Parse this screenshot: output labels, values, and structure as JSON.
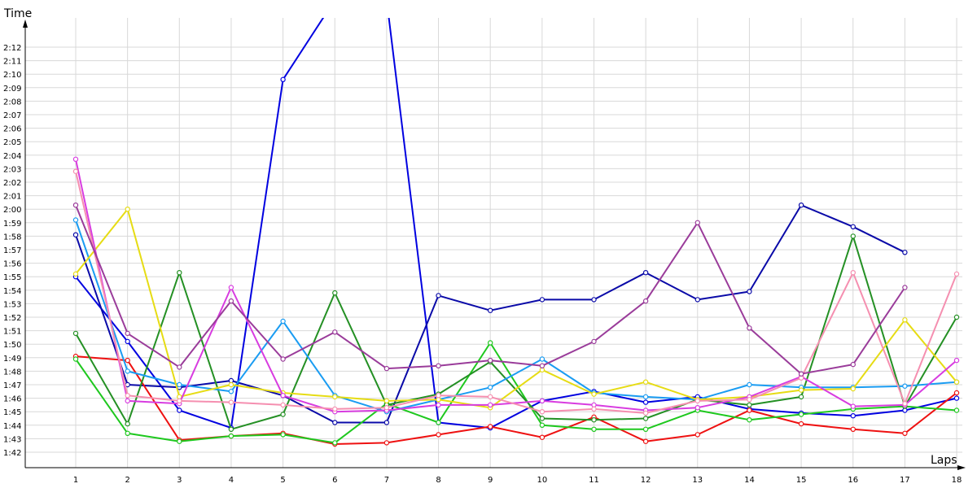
{
  "chart_data": {
    "type": "line",
    "ylabel": "Time",
    "xlabel": "Laps",
    "x": [
      1,
      2,
      3,
      4,
      5,
      6,
      7,
      8,
      9,
      10,
      11,
      12,
      13,
      14,
      15,
      16,
      17,
      18
    ],
    "y_tick_labels": [
      "1:42",
      "1:43",
      "1:44",
      "1:45",
      "1:46",
      "1:47",
      "1:48",
      "1:49",
      "1:50",
      "1:51",
      "1:52",
      "1:53",
      "1:54",
      "1:55",
      "1:56",
      "1:57",
      "1:58",
      "1:59",
      "2:00",
      "2:01",
      "2:02",
      "2:03",
      "2:04",
      "2:05",
      "2:06",
      "2:07",
      "2:08",
      "2:09",
      "2:10",
      "2:11",
      "2:12"
    ],
    "y_unit": "seconds",
    "ylim": [
      100.6,
      134.0
    ],
    "grid": true,
    "series": [
      {
        "color": "#0000e0",
        "values": [
          115.0,
          110.2,
          105.1,
          103.8,
          129.6,
          135.5,
          135.5,
          104.2,
          103.8,
          105.8,
          106.5,
          105.7,
          106.1,
          105.2,
          104.9,
          104.7,
          105.1,
          106.0
        ]
      },
      {
        "color": "#0a0aa8",
        "values": [
          118.1,
          107.0,
          106.8,
          107.3,
          106.2,
          104.2,
          104.2,
          113.6,
          112.5,
          113.3,
          113.3,
          115.3,
          113.3,
          113.9,
          120.3,
          118.7,
          116.8,
          null
        ]
      },
      {
        "color": "#ee1111",
        "values": [
          109.1,
          108.8,
          102.9,
          103.2,
          103.4,
          102.6,
          102.7,
          103.3,
          103.9,
          103.1,
          104.6,
          102.8,
          103.3,
          105.1,
          104.1,
          103.7,
          103.4,
          106.4
        ]
      },
      {
        "color": "#1ec81e",
        "values": [
          108.9,
          103.4,
          102.8,
          103.2,
          103.3,
          102.7,
          105.6,
          104.2,
          110.1,
          104.0,
          103.7,
          103.7,
          105.1,
          104.4,
          104.8,
          105.2,
          105.4,
          105.1
        ]
      },
      {
        "color": "#249024",
        "values": [
          110.8,
          104.1,
          115.3,
          103.7,
          104.8,
          113.8,
          105.5,
          106.3,
          108.7,
          104.5,
          104.4,
          104.5,
          105.9,
          105.5,
          106.1,
          118.0,
          105.4,
          112.0
        ]
      },
      {
        "color": "#1a9cf2",
        "values": [
          119.2,
          108.0,
          107.0,
          106.5,
          111.7,
          106.2,
          105.0,
          105.9,
          106.8,
          108.9,
          106.4,
          106.1,
          105.9,
          107.0,
          106.8,
          106.8,
          106.9,
          107.2
        ]
      },
      {
        "color": "#e6dc14",
        "values": [
          115.2,
          120.0,
          106.1,
          107.0,
          106.4,
          106.1,
          105.8,
          105.9,
          105.3,
          108.1,
          106.3,
          107.2,
          105.9,
          106.1,
          106.6,
          106.7,
          111.8,
          107.2
        ]
      },
      {
        "color": "#d83ce0",
        "values": [
          123.7,
          105.8,
          105.6,
          114.2,
          106.2,
          105.0,
          105.1,
          105.5,
          105.5,
          105.8,
          105.5,
          105.1,
          105.3,
          106.1,
          107.6,
          105.4,
          105.5,
          108.8
        ]
      },
      {
        "color": "#f58fb0",
        "values": [
          122.8,
          106.2,
          105.8,
          105.7,
          105.5,
          105.2,
          105.3,
          106.2,
          106.1,
          105.0,
          105.2,
          104.9,
          105.8,
          105.9,
          107.5,
          115.3,
          105.6,
          115.2
        ]
      },
      {
        "color": "#9a3c9a",
        "values": [
          120.3,
          110.8,
          108.3,
          113.2,
          108.9,
          110.9,
          108.2,
          108.4,
          108.8,
          108.4,
          110.2,
          113.2,
          119.0,
          111.2,
          107.8,
          108.5,
          114.2,
          null
        ]
      }
    ]
  }
}
